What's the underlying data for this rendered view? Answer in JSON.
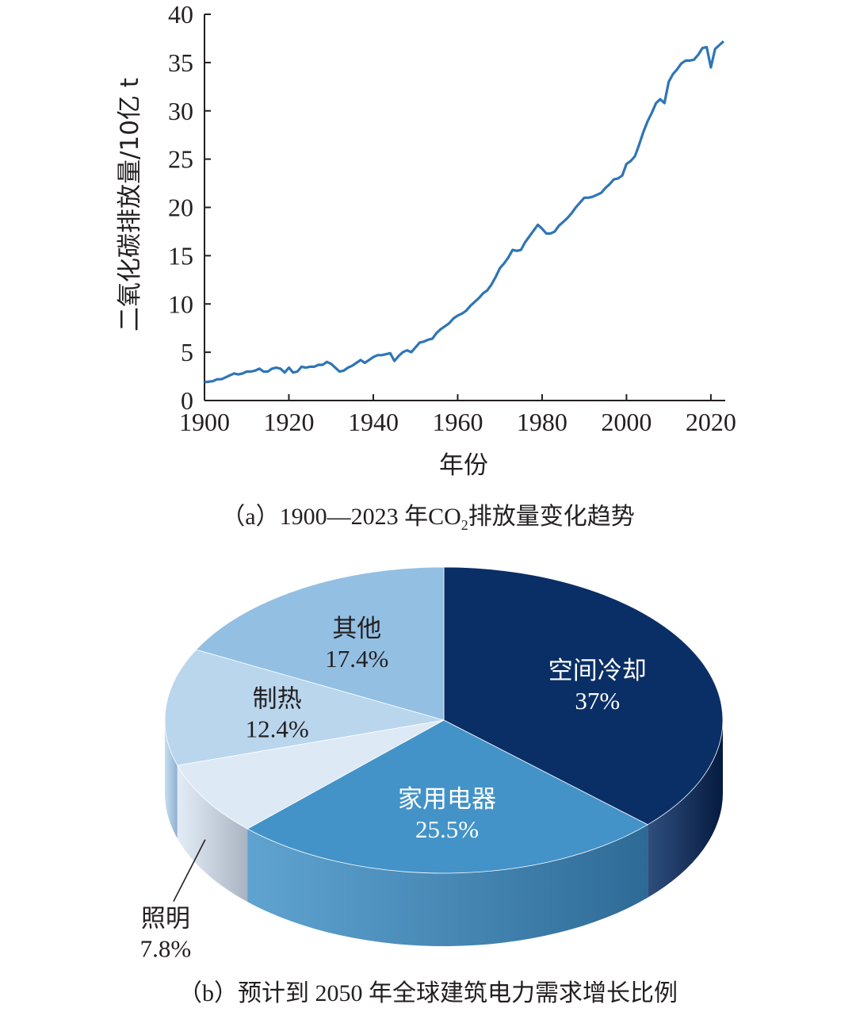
{
  "chart_data": [
    {
      "type": "line",
      "caption": {
        "prefix": "（a）1900—2023 年CO",
        "subscript": "2",
        "suffix": "排放量变化趋势"
      },
      "xlabel": "年份",
      "ylabel": "二氧化碳排放量/10亿 t",
      "xlim": [
        1900,
        2023
      ],
      "ylim": [
        0,
        40
      ],
      "x_ticks": [
        1900,
        1920,
        1940,
        1960,
        1980,
        2000,
        2020
      ],
      "y_ticks": [
        0,
        5,
        10,
        15,
        20,
        25,
        30,
        35,
        40
      ],
      "grid": false,
      "colors": {
        "line": "#2e75b6",
        "axis": "#231f20"
      },
      "series": [
        {
          "x": [
            1900,
            1901,
            1902,
            1903,
            1904,
            1905,
            1906,
            1907,
            1908,
            1909,
            1910,
            1911,
            1912,
            1913,
            1914,
            1915,
            1916,
            1917,
            1918,
            1919,
            1920,
            1921,
            1922,
            1923,
            1924,
            1925,
            1926,
            1927,
            1928,
            1929,
            1930,
            1931,
            1932,
            1933,
            1934,
            1935,
            1936,
            1937,
            1938,
            1939,
            1940,
            1941,
            1942,
            1943,
            1944,
            1945,
            1946,
            1947,
            1948,
            1949,
            1950,
            1951,
            1952,
            1953,
            1954,
            1955,
            1956,
            1957,
            1958,
            1959,
            1960,
            1961,
            1962,
            1963,
            1964,
            1965,
            1966,
            1967,
            1968,
            1969,
            1970,
            1971,
            1972,
            1973,
            1974,
            1975,
            1976,
            1977,
            1978,
            1979,
            1980,
            1981,
            1982,
            1983,
            1984,
            1985,
            1986,
            1987,
            1988,
            1989,
            1990,
            1991,
            1992,
            1993,
            1994,
            1995,
            1996,
            1997,
            1998,
            1999,
            2000,
            2001,
            2002,
            2003,
            2004,
            2005,
            2006,
            2007,
            2008,
            2009,
            2010,
            2011,
            2012,
            2013,
            2014,
            2015,
            2016,
            2017,
            2018,
            2019,
            2020,
            2021,
            2022,
            2023
          ],
          "values": [
            1.9,
            1.95,
            2.0,
            2.2,
            2.2,
            2.4,
            2.6,
            2.8,
            2.7,
            2.8,
            3.0,
            3.0,
            3.1,
            3.3,
            3.0,
            3.0,
            3.3,
            3.4,
            3.3,
            2.9,
            3.4,
            2.9,
            3.0,
            3.5,
            3.4,
            3.5,
            3.5,
            3.7,
            3.7,
            4.0,
            3.8,
            3.4,
            3.0,
            3.1,
            3.4,
            3.6,
            3.9,
            4.2,
            3.9,
            4.2,
            4.5,
            4.7,
            4.7,
            4.8,
            4.9,
            4.1,
            4.6,
            5.0,
            5.2,
            5.0,
            5.5,
            6.0,
            6.1,
            6.3,
            6.4,
            7.0,
            7.4,
            7.7,
            8.0,
            8.5,
            8.8,
            9.0,
            9.3,
            9.8,
            10.2,
            10.6,
            11.1,
            11.4,
            12.0,
            12.8,
            13.7,
            14.2,
            14.8,
            15.6,
            15.5,
            15.6,
            16.4,
            17.0,
            17.6,
            18.2,
            17.8,
            17.3,
            17.3,
            17.5,
            18.1,
            18.5,
            18.9,
            19.4,
            20.0,
            20.5,
            21.0,
            21.0,
            21.1,
            21.3,
            21.5,
            22.0,
            22.4,
            22.9,
            23.0,
            23.3,
            24.5,
            24.8,
            25.3,
            26.5,
            27.8,
            28.9,
            29.8,
            30.8,
            31.2,
            30.8,
            33.0,
            33.8,
            34.3,
            34.9,
            35.2,
            35.2,
            35.3,
            35.8,
            36.5,
            36.6,
            34.5,
            36.4,
            36.8,
            37.2
          ]
        }
      ]
    },
    {
      "type": "pie",
      "caption": "（b）预计到 2050 年全球建筑电力需求增长比例",
      "slices": [
        {
          "label": "空间冷却",
          "value_label": "37%",
          "value": 37.0,
          "color": "#0a2f66",
          "side_color": "#051a3e",
          "text_color": "#ffffff"
        },
        {
          "label": "家用电器",
          "value_label": "25.5%",
          "value": 25.5,
          "color": "#4393c8",
          "side_color": "#2e6a96",
          "text_color": "#ffffff"
        },
        {
          "label": "照明",
          "value_label": "7.8%",
          "value": 7.8,
          "color": "#dde9f5",
          "side_color": "#a9b3c1",
          "text_color": "#231f20"
        },
        {
          "label": "制热",
          "value_label": "12.4%",
          "value": 12.4,
          "color": "#b9d6ed",
          "side_color": "#8fb0cf",
          "text_color": "#231f20"
        },
        {
          "label": "其他",
          "value_label": "17.4%",
          "value": 17.4,
          "color": "#93bfe3",
          "side_color": "#6b98c3",
          "text_color": "#231f20"
        }
      ]
    }
  ]
}
